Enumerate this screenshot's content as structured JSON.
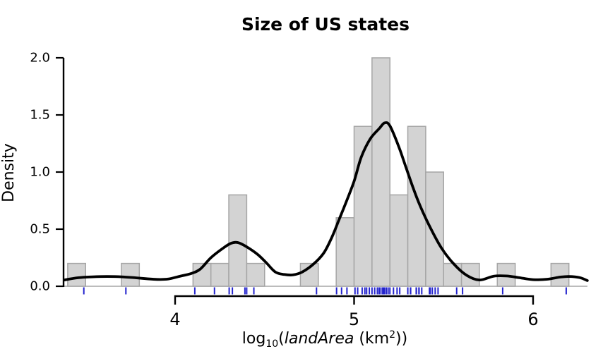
{
  "chart_data": {
    "type": "histogram_density",
    "title": "Size of US states",
    "ylabel": "Density",
    "xlabel_parts": {
      "func": "log",
      "base": "10",
      "open_paren": "(",
      "variable": "landArea",
      "unit_prefix": " (km",
      "exponent": "2",
      "close_parens": "))"
    },
    "x_ticks": [
      {
        "label": "4",
        "value": 4
      },
      {
        "label": "5",
        "value": 5
      },
      {
        "label": "6",
        "value": 6
      }
    ],
    "y_ticks": [
      {
        "label": "0.0",
        "value": 0
      },
      {
        "label": "0.5",
        "value": 0.5
      },
      {
        "label": "1.0",
        "value": 1
      },
      {
        "label": "1.5",
        "value": 1.5
      },
      {
        "label": "2.0",
        "value": 2
      }
    ],
    "xlim": [
      3.381,
      6.303
    ],
    "ylim": [
      0,
      2.0
    ],
    "bin_width": 0.1,
    "bins": [
      [
        3.4,
        0.2
      ],
      [
        3.7,
        0.2
      ],
      [
        4.1,
        0.2
      ],
      [
        4.2,
        0.2
      ],
      [
        4.3,
        0.8
      ],
      [
        4.4,
        0.2
      ],
      [
        4.7,
        0.2
      ],
      [
        4.9,
        0.6
      ],
      [
        5.0,
        1.4
      ],
      [
        5.1,
        2.0
      ],
      [
        5.2,
        0.8
      ],
      [
        5.3,
        1.4
      ],
      [
        5.4,
        1.0
      ],
      [
        5.5,
        0.2
      ],
      [
        5.6,
        0.2
      ],
      [
        5.8,
        0.2
      ],
      [
        6.1,
        0.2
      ]
    ],
    "values_log10_land_area": [
      3.49,
      3.725,
      4.11,
      4.22,
      4.302,
      4.32,
      4.39,
      4.4,
      4.44,
      4.79,
      4.902,
      4.93,
      4.96,
      5.005,
      5.02,
      5.045,
      5.06,
      5.07,
      5.085,
      5.1,
      5.115,
      5.13,
      5.14,
      5.15,
      5.16,
      5.165,
      5.17,
      5.18,
      5.19,
      5.2,
      5.22,
      5.24,
      5.255,
      5.3,
      5.315,
      5.316,
      5.347,
      5.348,
      5.362,
      5.363,
      5.378,
      5.421,
      5.425,
      5.437,
      5.453,
      5.469,
      5.573,
      5.606,
      5.83,
      6.185
    ],
    "density_curve": [
      [
        3.381,
        0.055
      ],
      [
        3.46,
        0.075
      ],
      [
        3.54,
        0.083
      ],
      [
        3.62,
        0.086
      ],
      [
        3.7,
        0.083
      ],
      [
        3.78,
        0.074
      ],
      [
        3.84,
        0.066
      ],
      [
        3.9,
        0.06
      ],
      [
        3.96,
        0.063
      ],
      [
        4.02,
        0.085
      ],
      [
        4.09,
        0.112
      ],
      [
        4.14,
        0.15
      ],
      [
        4.2,
        0.25
      ],
      [
        4.265,
        0.33
      ],
      [
        4.31,
        0.375
      ],
      [
        4.35,
        0.383
      ],
      [
        4.4,
        0.345
      ],
      [
        4.46,
        0.28
      ],
      [
        4.51,
        0.205
      ],
      [
        4.56,
        0.125
      ],
      [
        4.61,
        0.103
      ],
      [
        4.66,
        0.1
      ],
      [
        4.71,
        0.125
      ],
      [
        4.77,
        0.19
      ],
      [
        4.83,
        0.29
      ],
      [
        4.876,
        0.43
      ],
      [
        4.915,
        0.58
      ],
      [
        4.955,
        0.735
      ],
      [
        5.0,
        0.92
      ],
      [
        5.04,
        1.13
      ],
      [
        5.09,
        1.29
      ],
      [
        5.14,
        1.38
      ],
      [
        5.17,
        1.43
      ],
      [
        5.2,
        1.405
      ],
      [
        5.25,
        1.22
      ],
      [
        5.29,
        1.04
      ],
      [
        5.33,
        0.86
      ],
      [
        5.37,
        0.7
      ],
      [
        5.43,
        0.5
      ],
      [
        5.49,
        0.33
      ],
      [
        5.56,
        0.19
      ],
      [
        5.63,
        0.095
      ],
      [
        5.7,
        0.055
      ],
      [
        5.78,
        0.088
      ],
      [
        5.85,
        0.09
      ],
      [
        5.92,
        0.076
      ],
      [
        6.0,
        0.058
      ],
      [
        6.08,
        0.062
      ],
      [
        6.15,
        0.08
      ],
      [
        6.2,
        0.086
      ],
      [
        6.26,
        0.076
      ],
      [
        6.303,
        0.05
      ]
    ],
    "colors": {
      "bar_fill": "#d3d3d3",
      "bar_stroke": "#a5a5a5",
      "curve": "#000000",
      "rug": "#2323cd",
      "axis": "#000000"
    }
  }
}
